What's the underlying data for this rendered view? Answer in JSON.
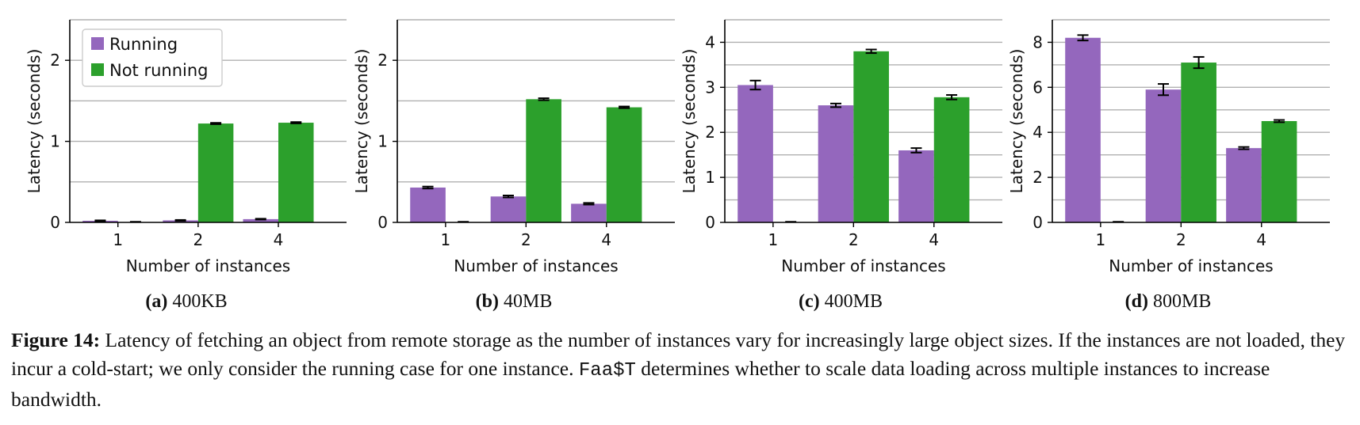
{
  "legend": {
    "running": "Running",
    "not_running": "Not running"
  },
  "colors": {
    "running": "#9467bd",
    "not_running": "#2ca02c"
  },
  "chart_data": [
    {
      "type": "bar",
      "label": "(a)",
      "title": "400KB",
      "xlabel": "Number of instances",
      "ylabel": "Latency (seconds)",
      "categories": [
        "1",
        "2",
        "4"
      ],
      "ylim": [
        0,
        2.5
      ],
      "yticks": [
        0,
        1,
        2
      ],
      "series": [
        {
          "name": "Running",
          "values": [
            0.02,
            0.025,
            0.04
          ],
          "errors": [
            0.005,
            0.005,
            0.005
          ]
        },
        {
          "name": "Not running",
          "values": [
            0,
            1.22,
            1.23
          ],
          "errors": [
            0,
            0.008,
            0.008
          ]
        }
      ]
    },
    {
      "type": "bar",
      "label": "(b)",
      "title": "40MB",
      "xlabel": "Number of instances",
      "ylabel": "Latency (seconds)",
      "categories": [
        "1",
        "2",
        "4"
      ],
      "ylim": [
        0,
        2.5
      ],
      "yticks": [
        0,
        1,
        2
      ],
      "series": [
        {
          "name": "Running",
          "values": [
            0.43,
            0.32,
            0.23
          ],
          "errors": [
            0.012,
            0.012,
            0.01
          ]
        },
        {
          "name": "Not running",
          "values": [
            0,
            1.52,
            1.42
          ],
          "errors": [
            0,
            0.012,
            0.01
          ]
        }
      ]
    },
    {
      "type": "bar",
      "label": "(c)",
      "title": "400MB",
      "xlabel": "Number of instances",
      "ylabel": "Latency (seconds)",
      "categories": [
        "1",
        "2",
        "4"
      ],
      "ylim": [
        0,
        4.5
      ],
      "yticks": [
        0,
        1,
        2,
        3,
        4
      ],
      "series": [
        {
          "name": "Running",
          "values": [
            3.05,
            2.6,
            1.6
          ],
          "errors": [
            0.1,
            0.04,
            0.05
          ]
        },
        {
          "name": "Not running",
          "values": [
            0,
            3.8,
            2.78
          ],
          "errors": [
            0,
            0.04,
            0.05
          ]
        }
      ]
    },
    {
      "type": "bar",
      "label": "(d)",
      "title": "800MB",
      "xlabel": "Number of instances",
      "ylabel": "Latency (seconds)",
      "categories": [
        "1",
        "2",
        "4"
      ],
      "ylim": [
        0,
        9
      ],
      "yticks": [
        0,
        2,
        4,
        6,
        8
      ],
      "series": [
        {
          "name": "Running",
          "values": [
            8.2,
            5.9,
            3.3
          ],
          "errors": [
            0.12,
            0.25,
            0.05
          ]
        },
        {
          "name": "Not running",
          "values": [
            0,
            7.1,
            4.5
          ],
          "errors": [
            0,
            0.25,
            0.05
          ]
        }
      ]
    }
  ],
  "caption": {
    "label": "Figure 14:",
    "text_1": " Latency of fetching an object from remote storage as the number of instances vary for increasingly large object sizes. If the instances are not loaded, they incur a cold-start; we only consider the running case for one instance. ",
    "code": "Faa$T",
    "text_2": " determines whether to scale data loading across multiple instances to increase bandwidth."
  }
}
